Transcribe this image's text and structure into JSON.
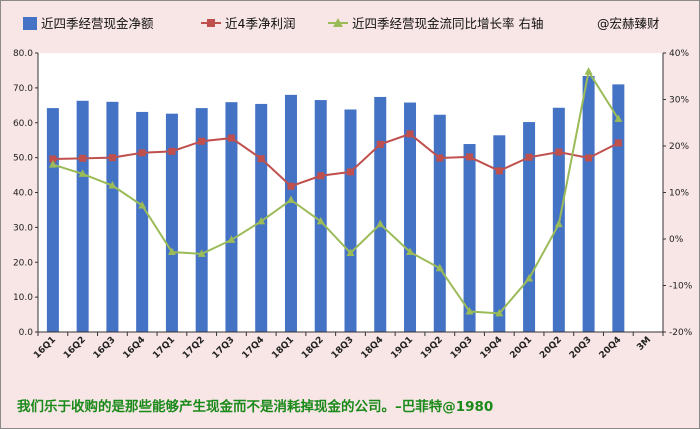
{
  "chart_data": {
    "type": "bar+line",
    "legend": {
      "items": [
        {
          "label": "近四季经营现金净额",
          "color": "#4472c4",
          "shape": "bar"
        },
        {
          "label": "近4季净利润",
          "color": "#c0504d",
          "shape": "line-square"
        },
        {
          "label": "近四季经营现金流同比增长率 右轴",
          "color": "#9bbb59",
          "shape": "line-triangle"
        }
      ],
      "watermark": "@宏赫臻财",
      "placement": "top"
    },
    "categories": [
      "16Q1",
      "16Q2",
      "16Q3",
      "16Q4",
      "17Q1",
      "17Q2",
      "17Q3",
      "17Q4",
      "18Q1",
      "18Q2",
      "18Q3",
      "18Q4",
      "19Q1",
      "19Q2",
      "19Q3",
      "19Q4",
      "20Q1",
      "20Q2",
      "20Q3",
      "20Q4",
      "3M"
    ],
    "series": [
      {
        "name": "近四季经营现金净额",
        "axis": "left",
        "type": "bar",
        "values": [
          64.2,
          66.3,
          66.0,
          63.1,
          62.6,
          64.2,
          65.9,
          65.4,
          68.0,
          66.5,
          63.8,
          67.4,
          65.8,
          62.3,
          53.9,
          56.4,
          60.2,
          64.3,
          73.4,
          71.0,
          null
        ]
      },
      {
        "name": "近4季净利润",
        "axis": "left",
        "type": "line",
        "values": [
          49.6,
          49.8,
          50.0,
          51.4,
          51.8,
          54.7,
          55.6,
          49.7,
          41.8,
          44.8,
          45.9,
          53.8,
          56.8,
          49.9,
          50.2,
          46.2,
          50.1,
          51.6,
          49.9,
          54.2,
          null
        ]
      },
      {
        "name": "近四季经营现金流同比增长率 右轴",
        "axis": "right",
        "type": "line",
        "values": [
          16.0,
          14.0,
          11.5,
          7.2,
          -2.8,
          -3.2,
          -0.2,
          3.8,
          8.4,
          3.8,
          -3.0,
          3.2,
          -2.8,
          -6.3,
          -15.6,
          -16.0,
          -8.5,
          3.2,
          36.0,
          25.8,
          null
        ]
      }
    ],
    "y_left": {
      "min": 0,
      "max": 80,
      "step": 10,
      "tick_labels": [
        "0.0",
        "10.0",
        "20.0",
        "30.0",
        "40.0",
        "50.0",
        "60.0",
        "70.0",
        "80.0"
      ]
    },
    "y_right": {
      "min": -20,
      "max": 40,
      "step": 10,
      "tick_labels": [
        "-20%",
        "-10%",
        "0%",
        "10%",
        "20%",
        "30%",
        "40%"
      ]
    },
    "grid": false
  },
  "footer": {
    "quote": "我们乐于收购的是那些能够产生现金而不是消耗掉现金的公司。–巴菲特@1980"
  },
  "colors": {
    "background": "#f8e5e5",
    "plot_background": "#ffffff",
    "bar": "#4472c4",
    "profit_line": "#c0504d",
    "growth_line": "#9bbb59",
    "quote_text": "#1a8a1a"
  }
}
